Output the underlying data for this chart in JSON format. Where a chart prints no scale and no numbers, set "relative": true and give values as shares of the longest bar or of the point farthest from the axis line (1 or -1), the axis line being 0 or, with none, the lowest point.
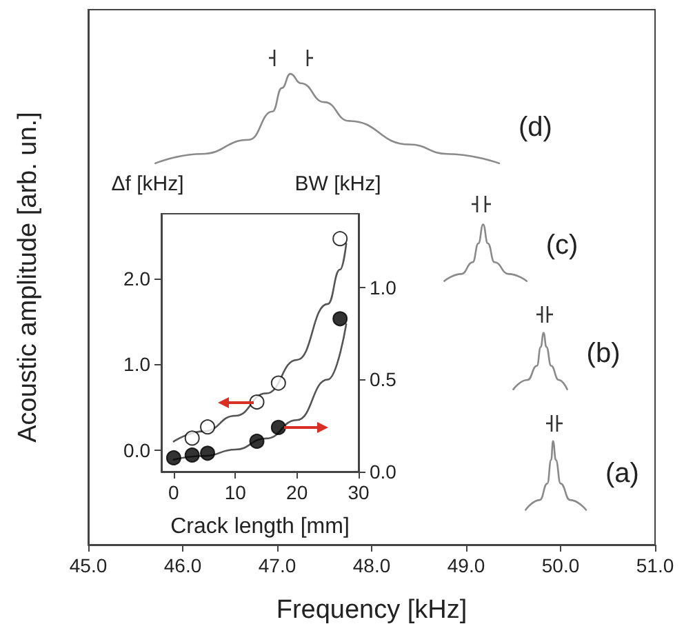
{
  "chart_data": [
    {
      "type": "line",
      "xlabel": "Frequency [kHz]",
      "ylabel": "Acoustic amplitude [arb. un.]",
      "relative": true,
      "xlim": [
        45,
        51
      ],
      "xticks": [
        {
          "value": 45,
          "label": "45.0"
        },
        {
          "value": 46,
          "label": "46.0"
        },
        {
          "value": 47,
          "label": "47.0"
        },
        {
          "value": 48,
          "label": "48.0"
        },
        {
          "value": 49,
          "label": "49.0"
        },
        {
          "value": 50,
          "label": "50.0"
        },
        {
          "value": 51,
          "label": "51.0"
        }
      ],
      "marker": "none",
      "line_style": "solid",
      "series": [
        {
          "name": "(d)",
          "color": "#8a8a8a",
          "x": [
            45.71,
            46.2,
            46.7,
            46.95,
            47.05,
            47.14,
            47.25,
            47.5,
            47.76,
            48.4,
            48.8,
            49.35
          ],
          "values": [
            0.81,
            0.83,
            0.86,
            0.92,
            0.97,
            1.0,
            0.98,
            0.94,
            0.9,
            0.85,
            0.83,
            0.81
          ]
        },
        {
          "name": "(c)",
          "color": "#8a8a8a",
          "x": [
            48.77,
            48.95,
            49.07,
            49.13,
            49.18,
            49.23,
            49.3,
            49.45,
            49.64
          ],
          "values": [
            0.56,
            0.575,
            0.6,
            0.64,
            0.68,
            0.64,
            0.6,
            0.575,
            0.56
          ]
        },
        {
          "name": "(b)",
          "color": "#8a8a8a",
          "x": [
            49.5,
            49.65,
            49.75,
            49.79,
            49.82,
            49.85,
            49.9,
            49.98,
            50.07
          ],
          "values": [
            0.33,
            0.35,
            0.38,
            0.42,
            0.45,
            0.42,
            0.38,
            0.35,
            0.33
          ]
        },
        {
          "name": "(a)",
          "color": "#8a8a8a",
          "x": [
            49.63,
            49.78,
            49.86,
            49.9,
            49.92,
            49.95,
            50.0,
            50.1,
            50.27
          ],
          "values": [
            0.074,
            0.095,
            0.13,
            0.18,
            0.22,
            0.18,
            0.13,
            0.095,
            0.074
          ]
        }
      ]
    },
    {
      "type": "scatter",
      "xlabel": "Crack length [mm]",
      "ylabel": "Δf [kHz]",
      "y2label": "BW [kHz]",
      "xlim": [
        -2,
        30
      ],
      "xticks": [
        0,
        10,
        20,
        30
      ],
      "ylim": [
        -0.25,
        2.75
      ],
      "yticks": [
        {
          "value": 0,
          "label": "0.0"
        },
        {
          "value": 1,
          "label": "1.0"
        },
        {
          "value": 2,
          "label": "2.0"
        }
      ],
      "y2lim": [
        0,
        1.4
      ],
      "y2ticks": [
        {
          "value": 0,
          "label": "0.0"
        },
        {
          "value": 0.5,
          "label": "0.5"
        },
        {
          "value": 1,
          "label": "1.0"
        }
      ],
      "series": [
        {
          "type": "scatter",
          "marker": "circle",
          "color": "#ffffff",
          "x": [
            3,
            5.5,
            13.5,
            17,
            27
          ],
          "values": [
            0.14,
            0.27,
            0.56,
            0.78,
            2.46
          ]
        },
        {
          "type": "scatter",
          "marker": "circle",
          "color": "#000000",
          "axis": "y2",
          "x": [
            0,
            3,
            5.5,
            13.5,
            17,
            27
          ],
          "values": [
            0.075,
            0.09,
            0.1,
            0.165,
            0.24,
            0.83
          ]
        },
        {
          "type": "line",
          "marker": "none",
          "color": "#555555",
          "x": [
            0,
            5,
            10,
            15,
            20,
            25,
            27,
            28
          ],
          "values": [
            0.1,
            0.22,
            0.4,
            0.66,
            1.05,
            1.7,
            2.1,
            2.4
          ]
        },
        {
          "type": "line",
          "marker": "none",
          "color": "#555555",
          "axis": "y2",
          "x": [
            0,
            5,
            10,
            15,
            20,
            25,
            28
          ],
          "values": [
            0.065,
            0.085,
            0.12,
            0.18,
            0.28,
            0.5,
            0.8
          ]
        }
      ]
    }
  ]
}
